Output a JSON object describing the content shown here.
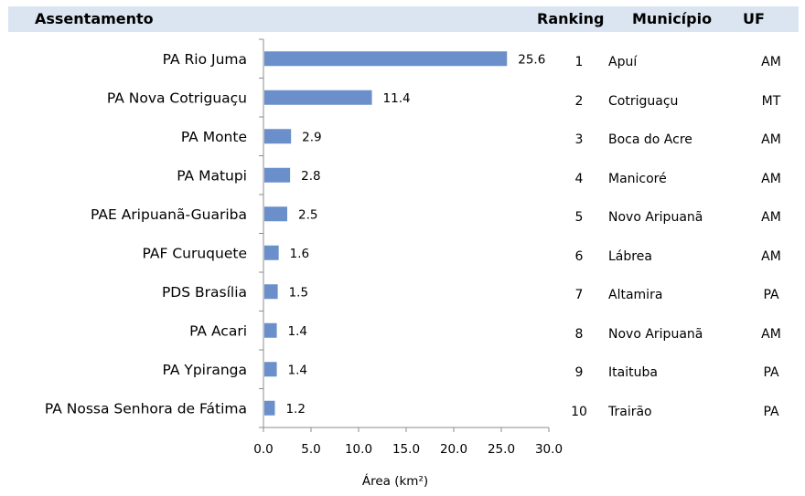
{
  "header": {
    "assentamento": "Assentamento",
    "ranking": "Ranking",
    "municipio": "Município",
    "uf": "UF"
  },
  "chart_data": {
    "type": "bar",
    "orientation": "horizontal",
    "categories": [
      "PA Rio Juma",
      "PA Nova Cotriguaçu",
      "PA Monte",
      "PA Matupi",
      "PAE Aripuanã-Guariba",
      "PAF Curuquete",
      "PDS Brasília",
      "PA Acari",
      "PA Ypiranga",
      "PA Nossa Senhora de Fátima"
    ],
    "values": [
      25.6,
      11.4,
      2.9,
      2.8,
      2.5,
      1.6,
      1.5,
      1.4,
      1.4,
      1.2
    ],
    "value_labels": [
      "25.6",
      "11.4",
      "2.9",
      "2.8",
      "2.5",
      "1.6",
      "1.5",
      "1.4",
      "1.4",
      "1.2"
    ],
    "xlabel": "Área (km²)",
    "xlim": [
      0,
      30
    ],
    "xticks": [
      "0.0",
      "5.0",
      "10.0",
      "15.0",
      "20.0",
      "25.0",
      "30.0"
    ],
    "grid": false,
    "bar_color": "#6b8fcb"
  },
  "table": {
    "rows": [
      {
        "ranking": "1",
        "municipio": "Apuí",
        "uf": "AM"
      },
      {
        "ranking": "2",
        "municipio": "Cotriguaçu",
        "uf": "MT"
      },
      {
        "ranking": "3",
        "municipio": "Boca do Acre",
        "uf": "AM"
      },
      {
        "ranking": "4",
        "municipio": "Manicoré",
        "uf": "AM"
      },
      {
        "ranking": "5",
        "municipio": "Novo Aripuanã",
        "uf": "AM"
      },
      {
        "ranking": "6",
        "municipio": "Lábrea",
        "uf": "AM"
      },
      {
        "ranking": "7",
        "municipio": "Altamira",
        "uf": "PA"
      },
      {
        "ranking": "8",
        "municipio": "Novo Aripuanã",
        "uf": "AM"
      },
      {
        "ranking": "9",
        "municipio": "Itaituba",
        "uf": "PA"
      },
      {
        "ranking": "10",
        "municipio": "Trairão",
        "uf": "PA"
      }
    ]
  }
}
